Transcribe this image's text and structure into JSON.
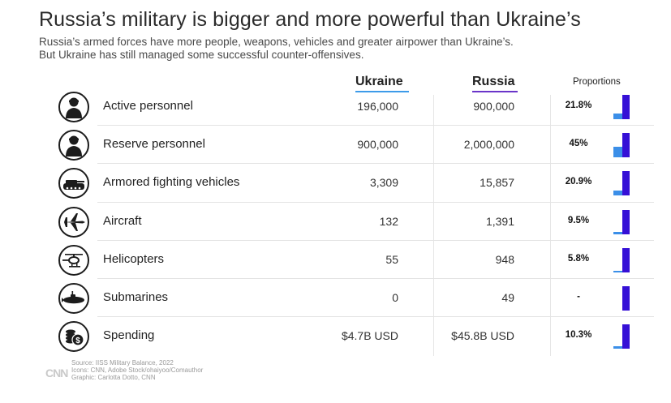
{
  "title": "Russia’s military is bigger and more powerful than Ukraine’s",
  "subtitle_line1": "Russia’s armed forces have more people, weapons, vehicles and greater airpower than Ukraine’s.",
  "subtitle_line2": "But Ukraine has still managed some successful counter-offensives.",
  "columns": {
    "ukraine": "Ukraine",
    "russia": "Russia",
    "proportions": "Proportions"
  },
  "colors": {
    "ukraine": "#3b8fe8",
    "russia": "#3510d6"
  },
  "chart_data": {
    "type": "table",
    "rows": [
      {
        "label": "Active personnel",
        "icon": "soldier-icon",
        "ukraine": "196,000",
        "russia": "900,000",
        "proportion_text": "21.8%",
        "proportion": 0.218
      },
      {
        "label": "Reserve personnel",
        "icon": "soldier-icon",
        "ukraine": "900,000",
        "russia": "2,000,000",
        "proportion_text": "45%",
        "proportion": 0.45
      },
      {
        "label": "Armored fighting vehicles",
        "icon": "tank-icon",
        "ukraine": "3,309",
        "russia": "15,857",
        "proportion_text": "20.9%",
        "proportion": 0.209
      },
      {
        "label": "Aircraft",
        "icon": "fighter-jet-icon",
        "ukraine": "132",
        "russia": "1,391",
        "proportion_text": "9.5%",
        "proportion": 0.095
      },
      {
        "label": "Helicopters",
        "icon": "helicopter-icon",
        "ukraine": "55",
        "russia": "948",
        "proportion_text": "5.8%",
        "proportion": 0.058
      },
      {
        "label": "Submarines",
        "icon": "submarine-icon",
        "ukraine": "0",
        "russia": "49",
        "proportion_text": "-",
        "proportion": 0
      },
      {
        "label": "Spending",
        "icon": "money-icon",
        "ukraine": "$4.7B USD",
        "russia": "$45.8B USD",
        "proportion_text": "10.3%",
        "proportion": 0.103
      }
    ]
  },
  "footer": {
    "logo": "CNN",
    "source": "Source: IISS Military Balance, 2022",
    "icons": "Icons: CNN, Adobe Stock/ohaiyoo/Comauthor",
    "graphic": "Graphic: Carlotta Dotto, CNN"
  }
}
